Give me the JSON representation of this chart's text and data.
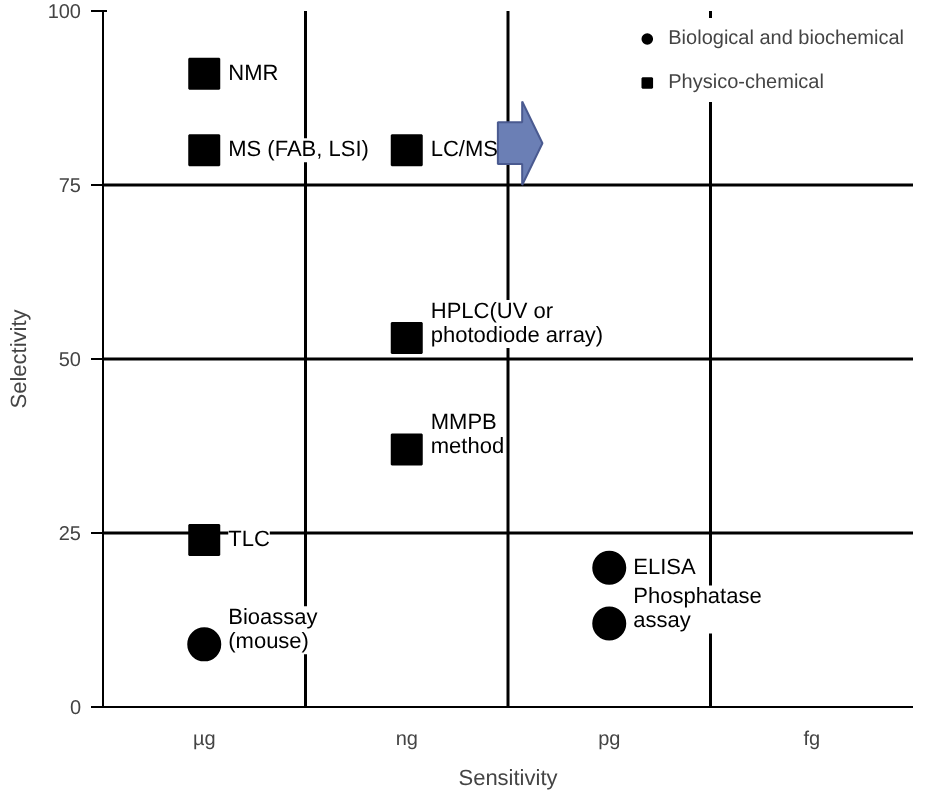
{
  "chart_data": {
    "type": "scatter",
    "xlabel": "Sensitivity",
    "ylabel": "Selectivity",
    "categories": [
      "µg",
      "ng",
      "pg",
      "fg"
    ],
    "ylim": [
      0,
      100
    ],
    "yticks": [
      0,
      25,
      50,
      75,
      100
    ],
    "grid": "y",
    "legend": "top right",
    "series": [
      {
        "name": "Biological and biochemical",
        "color": "#000000",
        "marker": "circle",
        "x": [
          "µg",
          "pg",
          "pg"
        ],
        "values": [
          9,
          20,
          12
        ]
      },
      {
        "name": "Physico-chemical",
        "color": "#000000",
        "marker": "square",
        "x": [
          "µg",
          "µg",
          "ng",
          "ng",
          "ng",
          "µg"
        ],
        "values": [
          91,
          80,
          80,
          53,
          37,
          24
        ]
      }
    ],
    "annotations": [
      {
        "text": "NMR",
        "x": "µg",
        "y": 91
      },
      {
        "text": "MS (FAB, LSI)",
        "x": "µg",
        "y": 80
      },
      {
        "text": "LC/MS",
        "x": "ng",
        "y": 80
      },
      {
        "text": "HPLC(UV or\nphotodiode array)",
        "x": "ng",
        "y": 53
      },
      {
        "text": "MMPB\nmethod",
        "x": "ng",
        "y": 37
      },
      {
        "text": "TLC",
        "x": "µg",
        "y": 24
      },
      {
        "text": "Bioassay\n(mouse)",
        "x": "µg",
        "y": 9
      },
      {
        "text": "ELISA",
        "x": "pg",
        "y": 20
      },
      {
        "text": "Phosphatase\nassay",
        "x": "pg",
        "y": 12
      }
    ]
  }
}
